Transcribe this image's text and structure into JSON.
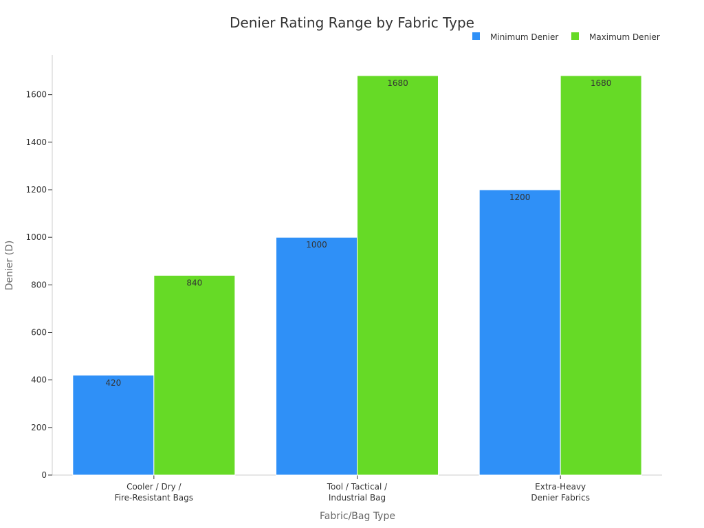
{
  "chart_data": {
    "type": "bar",
    "title": "Denier Rating Range by Fabric Type",
    "xlabel": "Fabric/Bag Type",
    "ylabel": "Denier (D)",
    "categories": [
      [
        "Cooler / Dry /",
        "Fire-Resistant Bags"
      ],
      [
        "Tool / Tactical /",
        "Industrial Bag"
      ],
      [
        "Extra-Heavy",
        "Denier Fabrics"
      ]
    ],
    "series": [
      {
        "name": "Minimum Denier",
        "color": "#2f90f7",
        "values": [
          420,
          1000,
          1200
        ]
      },
      {
        "name": "Maximum Denier",
        "color": "#66da26",
        "values": [
          840,
          1680,
          1680
        ]
      }
    ],
    "ylim": [
      0,
      1680
    ],
    "yticks": [
      0,
      200,
      400,
      600,
      800,
      1000,
      1200,
      1400,
      1600
    ],
    "grid": false,
    "legend_position": "top-right"
  }
}
